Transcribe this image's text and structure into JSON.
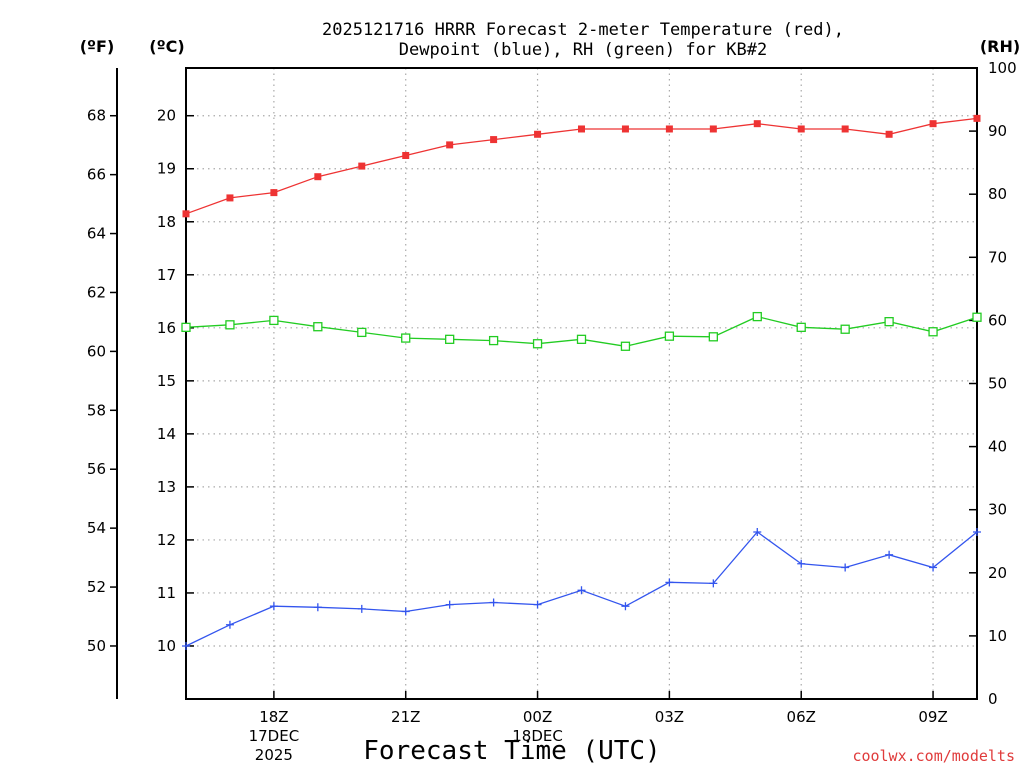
{
  "chart_data": {
    "type": "line",
    "title_line1": "2025121716 HRRR Forecast 2-meter Temperature (red),",
    "title_line2": "Dewpoint (blue), RH (green) for KB#2",
    "unit_f": "(ºF)",
    "unit_c": "(ºC)",
    "unit_rh": "(RH)",
    "xlabel": "Forecast Time (UTC)",
    "credit": "coolwx.com/modelts",
    "x_hours": [
      0,
      1,
      2,
      3,
      4,
      5,
      6,
      7,
      8,
      9,
      10,
      11,
      12,
      13,
      14,
      15,
      16,
      17,
      18
    ],
    "xlim": [
      0,
      18
    ],
    "ylim_c": [
      9.0,
      20.9
    ],
    "ylim_rh": [
      0,
      100
    ],
    "f_ticks": [
      50,
      52,
      54,
      56,
      58,
      60,
      62,
      64,
      66,
      68
    ],
    "c_ticks": [
      10,
      11,
      12,
      13,
      14,
      15,
      16,
      17,
      18,
      19,
      20
    ],
    "rh_ticks": [
      0,
      10,
      20,
      30,
      40,
      50,
      60,
      70,
      80,
      90,
      100
    ],
    "x_ticks": [
      {
        "hour": 2,
        "lines": [
          "18Z",
          "17DEC",
          "2025"
        ]
      },
      {
        "hour": 5,
        "lines": [
          "21Z"
        ]
      },
      {
        "hour": 8,
        "lines": [
          "00Z",
          "18DEC"
        ]
      },
      {
        "hour": 11,
        "lines": [
          "03Z"
        ]
      },
      {
        "hour": 14,
        "lines": [
          "06Z"
        ]
      },
      {
        "hour": 17,
        "lines": [
          "09Z"
        ]
      }
    ],
    "series": [
      {
        "name": "Temperature",
        "unit": "C",
        "color": "#ee3333",
        "marker": "filled-square",
        "values": [
          18.15,
          18.45,
          18.55,
          18.85,
          19.05,
          19.25,
          19.45,
          19.55,
          19.65,
          19.75,
          19.75,
          19.75,
          19.75,
          19.85,
          19.75,
          19.75,
          19.65,
          19.85,
          19.95
        ]
      },
      {
        "name": "Dewpoint",
        "unit": "C",
        "color": "#3355ee",
        "marker": "plus",
        "values": [
          10.0,
          10.4,
          10.75,
          10.73,
          10.7,
          10.65,
          10.78,
          10.82,
          10.78,
          11.05,
          10.75,
          11.2,
          11.18,
          12.15,
          11.55,
          11.48,
          11.72,
          11.48,
          12.15
        ]
      },
      {
        "name": "RH",
        "unit": "%",
        "color": "#22cc22",
        "marker": "open-square",
        "values": [
          58.9,
          59.3,
          60.0,
          59.0,
          58.1,
          57.2,
          57.0,
          56.8,
          56.3,
          57.0,
          55.9,
          57.5,
          57.4,
          60.6,
          58.9,
          58.6,
          59.8,
          58.2,
          60.5
        ]
      }
    ]
  }
}
